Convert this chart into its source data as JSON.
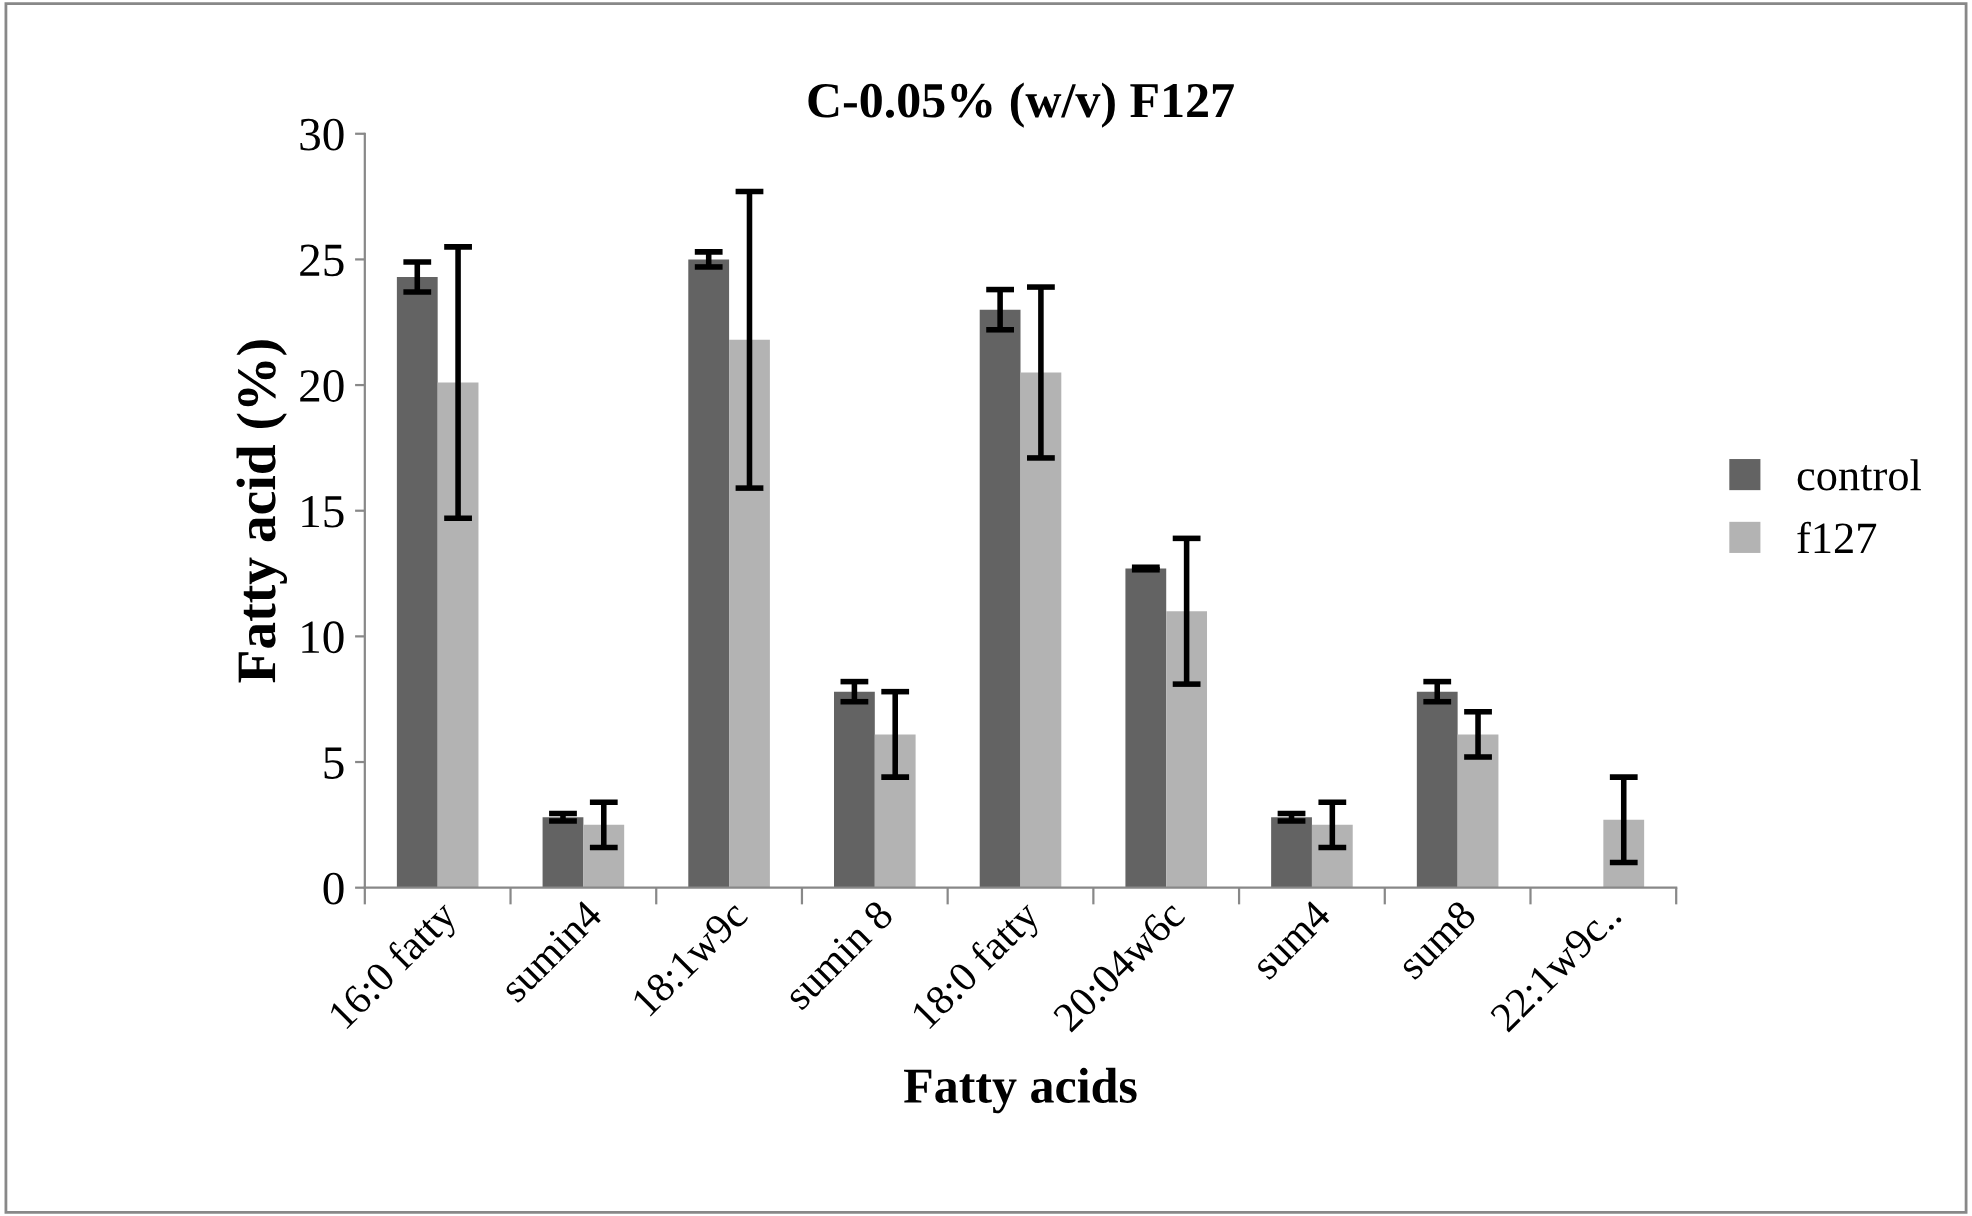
{
  "chart_data": {
    "type": "bar",
    "title": "C-0.05% (w/v) F127",
    "xlabel": "Fatty acids",
    "ylabel": "Fatty acid (%)",
    "categories": [
      "16:0 fatty",
      "sumin4",
      "18:1w9c",
      "sumin 8",
      "18:0 fatty",
      "20:04w6c",
      "sum4",
      "sum8",
      "22:1w9c.."
    ],
    "series": [
      {
        "name": "control",
        "color": "#636363",
        "values": [
          24.3,
          2.8,
          25.0,
          7.8,
          23.0,
          12.7,
          2.8,
          7.8,
          null
        ],
        "errors": [
          0.6,
          0.15,
          0.3,
          0.4,
          0.8,
          0.05,
          0.15,
          0.4,
          null
        ]
      },
      {
        "name": "f127",
        "color": "#b3b3b3",
        "values": [
          20.1,
          2.5,
          21.8,
          6.1,
          20.5,
          11.0,
          2.5,
          6.1,
          2.7
        ],
        "errors": [
          5.4,
          0.9,
          5.9,
          1.7,
          3.4,
          2.9,
          0.9,
          0.9,
          1.7
        ]
      }
    ],
    "ylim": [
      0,
      30
    ],
    "yticks": [
      0,
      5,
      10,
      15,
      20,
      25,
      30
    ],
    "grid": false,
    "legend": "right"
  }
}
